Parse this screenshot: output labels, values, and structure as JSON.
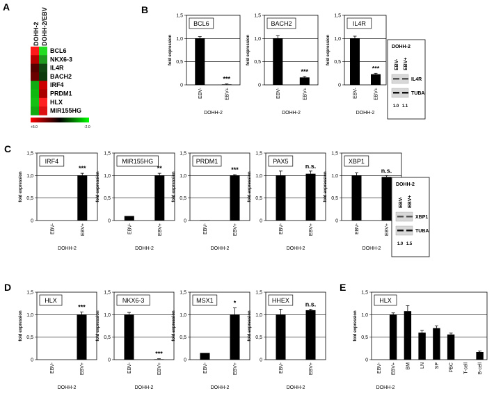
{
  "figure": {
    "panel_labels": [
      "A",
      "B",
      "C",
      "D",
      "E"
    ],
    "y_axis_label": "fold expression",
    "y_ticks": [
      "0",
      "0,5",
      "1,0",
      "1,5"
    ],
    "x_label": "DOHH-2"
  },
  "heatmap": {
    "columns": [
      "DOHH-2",
      "DOHH-2/EBV"
    ],
    "genes": [
      "BCL6",
      "NKX6-3",
      "IL4R",
      "BACH2",
      "IRF4",
      "PRDM1",
      "HLX",
      "MIR155HG"
    ],
    "colors": [
      [
        "#ff1a1a",
        "#22dd22"
      ],
      [
        "#b80000",
        "#1f9a1f"
      ],
      [
        "#550000",
        "#104410"
      ],
      [
        "#6a0000",
        "#0c3a0c"
      ],
      [
        "#12aa12",
        "#cc0000"
      ],
      [
        "#0fb80f",
        "#aa0000"
      ],
      [
        "#13c013",
        "#ff2222"
      ],
      [
        "#11aa11",
        "#dd1111"
      ]
    ],
    "scale_min": "+6.0",
    "scale_max": "-2.0",
    "scale_colors": [
      "#ff0000",
      "#000000",
      "#00ff00"
    ]
  },
  "chart_data": [
    {
      "type": "bar",
      "title": "BCL6",
      "categories": [
        "EBV-",
        "EBV+"
      ],
      "values": [
        1.0,
        0.01
      ],
      "errors": [
        0.04,
        0.01
      ],
      "significance": "***",
      "ylim": [
        0,
        1.5
      ],
      "xlabel": "DOHH-2",
      "ylabel": "fold expression"
    },
    {
      "type": "bar",
      "title": "BACH2",
      "categories": [
        "EBV-",
        "EBV+"
      ],
      "values": [
        1.0,
        0.16
      ],
      "errors": [
        0.06,
        0.02
      ],
      "significance": "***",
      "ylim": [
        0,
        1.5
      ],
      "xlabel": "DOHH-2",
      "ylabel": "fold expression"
    },
    {
      "type": "bar",
      "title": "IL4R",
      "categories": [
        "EBV-",
        "EBV+"
      ],
      "values": [
        1.0,
        0.23
      ],
      "errors": [
        0.05,
        0.02
      ],
      "significance": "***",
      "ylim": [
        0,
        1.5
      ],
      "xlabel": "DOHH-2",
      "ylabel": "fold expression"
    },
    {
      "type": "bar",
      "title": "IRF4",
      "categories": [
        "EBV-",
        "EBV+"
      ],
      "values": [
        0.0,
        1.0
      ],
      "errors": [
        0.0,
        0.05
      ],
      "significance": "***",
      "ylim": [
        0,
        1.5
      ],
      "xlabel": "DOHH-2",
      "ylabel": "fold expression"
    },
    {
      "type": "bar",
      "title": "MIR155HG",
      "categories": [
        "EBV-",
        "EBV+"
      ],
      "values": [
        0.1,
        1.0
      ],
      "errors": [
        0.0,
        0.05
      ],
      "significance": "**",
      "ylim": [
        0,
        1.5
      ],
      "xlabel": "DOHH-2",
      "ylabel": "fold expression"
    },
    {
      "type": "bar",
      "title": "PRDM1",
      "categories": [
        "EBV-",
        "EBV+"
      ],
      "values": [
        0.01,
        1.0
      ],
      "errors": [
        0.0,
        0.02
      ],
      "significance": "***",
      "ylim": [
        0,
        1.5
      ],
      "xlabel": "DOHH-2",
      "ylabel": "fold expression"
    },
    {
      "type": "bar",
      "title": "PAX5",
      "categories": [
        "EBV-",
        "EBV+"
      ],
      "values": [
        1.0,
        1.04
      ],
      "errors": [
        0.1,
        0.06
      ],
      "significance": "n.s.",
      "ylim": [
        0,
        1.5
      ],
      "xlabel": "DOHH-2",
      "ylabel": "fold expression"
    },
    {
      "type": "bar",
      "title": "XBP1",
      "categories": [
        "EBV-",
        "EBV+"
      ],
      "values": [
        1.0,
        0.97
      ],
      "errors": [
        0.06,
        0.03
      ],
      "significance": "n.s.",
      "ylim": [
        0,
        1.5
      ],
      "xlabel": "DOHH-2",
      "ylabel": "fold expression"
    },
    {
      "type": "bar",
      "title": "HLX",
      "categories": [
        "EBV-",
        "EBV+"
      ],
      "values": [
        0.0,
        1.0
      ],
      "errors": [
        0.0,
        0.06
      ],
      "significance": "***",
      "ylim": [
        0,
        1.5
      ],
      "xlabel": "DOHH-2",
      "ylabel": "fold expression"
    },
    {
      "type": "bar",
      "title": "NKX6-3",
      "categories": [
        "EBV-",
        "EBV+"
      ],
      "values": [
        1.0,
        0.01
      ],
      "errors": [
        0.05,
        0.01
      ],
      "significance": "***",
      "ylim": [
        0,
        1.5
      ],
      "xlabel": "DOHH-2",
      "ylabel": "fold expression"
    },
    {
      "type": "bar",
      "title": "MSX1",
      "categories": [
        "EBV-",
        "EBV+"
      ],
      "values": [
        0.15,
        1.0
      ],
      "errors": [
        0.0,
        0.15
      ],
      "significance": "*",
      "ylim": [
        0,
        1.5
      ],
      "xlabel": "DOHH-2",
      "ylabel": "fold expression"
    },
    {
      "type": "bar",
      "title": "HHEX",
      "categories": [
        "EBV-",
        "EBV+"
      ],
      "values": [
        1.0,
        1.1
      ],
      "errors": [
        0.12,
        0.02
      ],
      "significance": "n.s.",
      "ylim": [
        0,
        1.5
      ],
      "xlabel": "DOHH-2",
      "ylabel": "fold expression"
    },
    {
      "type": "bar",
      "title": "HLX",
      "categories": [
        "EBV-",
        "EBV+",
        "BM",
        "LN",
        "SP",
        "PBC",
        "T-cell",
        "B-cell"
      ],
      "values": [
        0.0,
        1.0,
        1.08,
        0.6,
        0.7,
        0.56,
        0.0,
        0.17
      ],
      "errors": [
        0,
        0.04,
        0.12,
        0.05,
        0.05,
        0.03,
        0,
        0.02
      ],
      "significance": "",
      "ylim": [
        0,
        1.5
      ],
      "xlabel": "DOHH-2",
      "ylabel": "fold expression"
    }
  ],
  "western_blots": [
    {
      "cell_line": "DOHH-2",
      "lanes": [
        "EBV-",
        "EBV+"
      ],
      "bands": [
        "IL4R",
        "TUBA"
      ],
      "quant": [
        "1.0",
        "1.1"
      ]
    },
    {
      "cell_line": "DOHH-2",
      "lanes": [
        "EBV-",
        "EBV+"
      ],
      "bands": [
        "XBP1",
        "TUBA"
      ],
      "quant": [
        "1.0",
        "1.5"
      ]
    }
  ]
}
